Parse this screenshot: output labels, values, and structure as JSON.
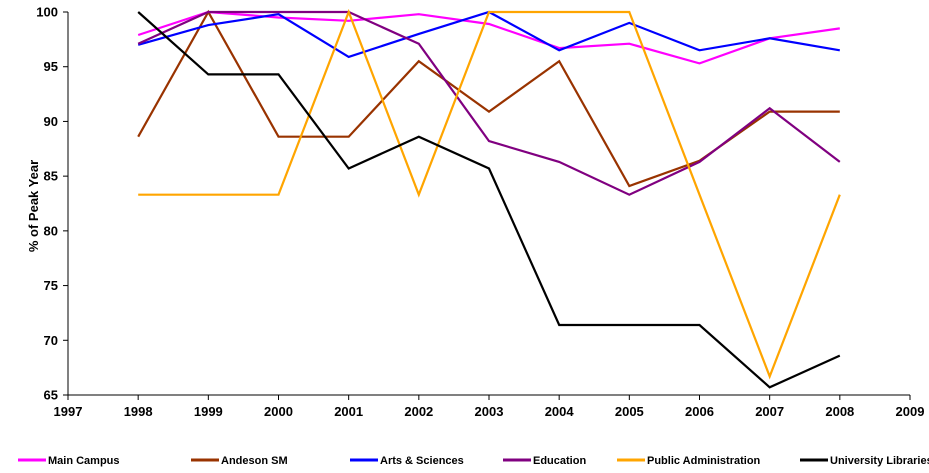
{
  "chart_data": {
    "type": "line",
    "title": "",
    "xlabel": "",
    "ylabel": "% of Peak Year",
    "xlim": [
      1997,
      2009
    ],
    "ylim": [
      65,
      100
    ],
    "xticks": [
      1997,
      1998,
      1999,
      2000,
      2001,
      2002,
      2003,
      2004,
      2005,
      2006,
      2007,
      2008,
      2009
    ],
    "yticks": [
      65,
      70,
      75,
      80,
      85,
      90,
      95,
      100
    ],
    "grid": false,
    "legend_position": "bottom",
    "x": [
      1998,
      1999,
      2000,
      2001,
      2002,
      2003,
      2004,
      2005,
      2006,
      2007,
      2008
    ],
    "series": [
      {
        "name": "Main Campus",
        "color": "#ff00ff",
        "values": [
          97.9,
          100,
          99.5,
          99.2,
          99.8,
          98.9,
          96.7,
          97.1,
          95.3,
          97.6,
          98.5
        ]
      },
      {
        "name": "Andeson SM",
        "color": "#993300",
        "values": [
          88.6,
          100,
          88.6,
          88.6,
          95.5,
          90.9,
          95.5,
          84.1,
          86.4,
          90.9,
          90.9
        ]
      },
      {
        "name": "Arts & Sciences",
        "color": "#0000ff",
        "values": [
          97.0,
          98.8,
          99.8,
          95.9,
          98.0,
          100,
          96.5,
          99.0,
          96.5,
          97.6,
          96.5
        ]
      },
      {
        "name": "Education",
        "color": "#800080",
        "values": [
          97.1,
          100,
          100,
          100,
          97.1,
          88.2,
          86.3,
          83.3,
          86.3,
          91.2,
          86.3
        ]
      },
      {
        "name": "Public Administration",
        "color": "#ffa500",
        "values": [
          83.3,
          83.3,
          83.3,
          100,
          83.3,
          100,
          100,
          100,
          83.3,
          66.7,
          83.3
        ]
      },
      {
        "name": "University Libraries",
        "color": "#000000",
        "values": [
          100,
          94.3,
          94.3,
          85.7,
          88.6,
          85.7,
          71.4,
          71.4,
          71.4,
          65.7,
          68.6
        ]
      }
    ]
  }
}
